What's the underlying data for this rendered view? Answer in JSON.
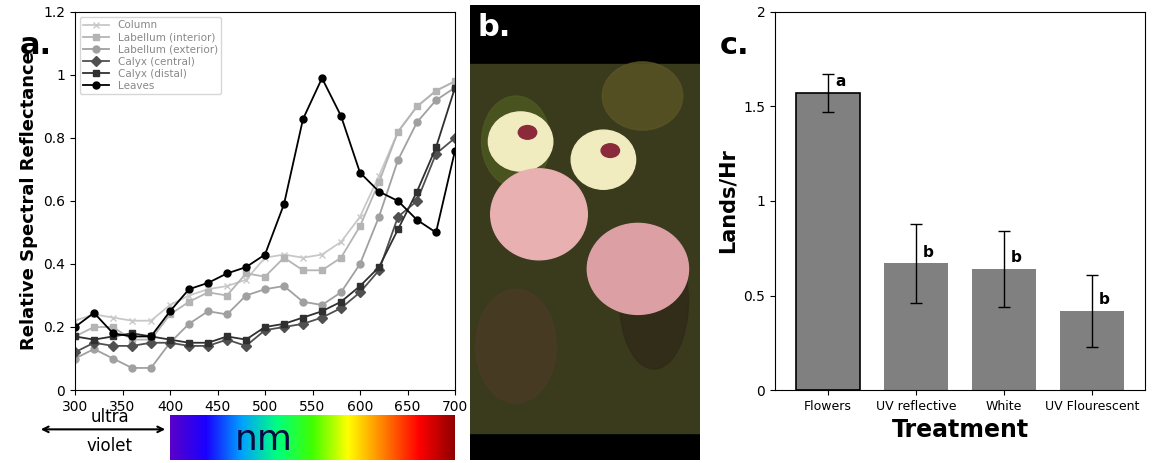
{
  "chart_data": [
    {
      "type": "line",
      "panel_label": "a.",
      "y_label": "Relative Spectral Reflectance",
      "x_label": "nm",
      "uv_label": [
        "ultra",
        "violet"
      ],
      "x": [
        300,
        320,
        340,
        360,
        380,
        400,
        420,
        440,
        460,
        480,
        500,
        520,
        540,
        560,
        580,
        600,
        620,
        640,
        660,
        680,
        700
      ],
      "series": [
        {
          "name": "Column",
          "color": "#c8c8c8",
          "marker": "x",
          "values": [
            0.22,
            0.24,
            0.23,
            0.22,
            0.22,
            0.27,
            0.3,
            0.32,
            0.33,
            0.35,
            0.42,
            0.43,
            0.42,
            0.43,
            0.47,
            0.55,
            0.68,
            0.82,
            0.9,
            0.95,
            0.98
          ]
        },
        {
          "name": "Labellum (interior)",
          "color": "#b4b4b4",
          "marker": "s",
          "values": [
            0.17,
            0.2,
            0.2,
            0.16,
            0.16,
            0.24,
            0.28,
            0.31,
            0.3,
            0.37,
            0.36,
            0.42,
            0.38,
            0.38,
            0.42,
            0.52,
            0.66,
            0.82,
            0.9,
            0.95,
            0.98
          ]
        },
        {
          "name": "Labellum (exterior)",
          "color": "#a0a0a0",
          "marker": "o",
          "values": [
            0.1,
            0.13,
            0.1,
            0.07,
            0.07,
            0.15,
            0.21,
            0.25,
            0.24,
            0.3,
            0.32,
            0.33,
            0.28,
            0.27,
            0.31,
            0.4,
            0.55,
            0.73,
            0.85,
            0.92,
            0.96
          ]
        },
        {
          "name": "Calyx (central)",
          "color": "#505050",
          "marker": "D",
          "values": [
            0.12,
            0.15,
            0.14,
            0.14,
            0.15,
            0.15,
            0.14,
            0.14,
            0.16,
            0.14,
            0.19,
            0.2,
            0.21,
            0.23,
            0.26,
            0.31,
            0.38,
            0.55,
            0.6,
            0.75,
            0.8
          ]
        },
        {
          "name": "Calyx (distal)",
          "color": "#303030",
          "marker": "s",
          "values": [
            0.17,
            0.16,
            0.17,
            0.18,
            0.17,
            0.16,
            0.15,
            0.15,
            0.17,
            0.16,
            0.2,
            0.21,
            0.23,
            0.25,
            0.28,
            0.33,
            0.39,
            0.51,
            0.63,
            0.77,
            0.96
          ]
        },
        {
          "name": "Leaves",
          "color": "#000000",
          "marker": "o",
          "values": [
            0.2,
            0.245,
            0.18,
            0.17,
            0.17,
            0.25,
            0.32,
            0.34,
            0.37,
            0.39,
            0.43,
            0.59,
            0.86,
            0.99,
            0.87,
            0.69,
            0.63,
            0.6,
            0.54,
            0.5,
            0.76
          ]
        }
      ],
      "xlim": [
        300,
        700
      ],
      "xticks": [
        300,
        350,
        400,
        450,
        500,
        550,
        600,
        650,
        700
      ],
      "ylim": [
        0,
        1.2
      ],
      "yticks": [
        0,
        0.2,
        0.4,
        0.6,
        0.8,
        1,
        1.2
      ],
      "legend": "upper left"
    },
    {
      "type": "image",
      "panel_label": "b."
    },
    {
      "type": "bar",
      "panel_label": "c.",
      "x_label": "Treatment",
      "y_label": "Lands/Hr",
      "categories": [
        "Flowers",
        "UV reflective",
        "White",
        "UV Flourescent"
      ],
      "values": [
        1.57,
        0.67,
        0.64,
        0.42
      ],
      "error": [
        0.1,
        0.21,
        0.2,
        0.19
      ],
      "letters": [
        "a",
        "b",
        "b",
        "b"
      ],
      "color": "#808080",
      "ylim": [
        0,
        2
      ],
      "yticks": [
        0,
        0.5,
        1,
        1.5,
        2
      ]
    }
  ]
}
